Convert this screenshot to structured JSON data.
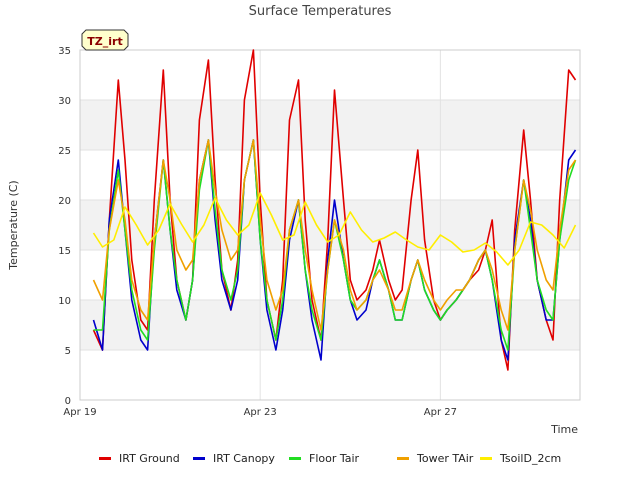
{
  "chart_data": {
    "type": "line",
    "title": "Surface Temperatures",
    "xlabel": "Time",
    "ylabel": "Temperature (C)",
    "badge": "TZ_irt",
    "xlim": [
      0,
      11.1
    ],
    "ylim": [
      0,
      35
    ],
    "yticks": [
      0,
      5,
      10,
      15,
      20,
      25,
      30,
      35
    ],
    "xticks": [
      {
        "value": 0,
        "label": "Apr 19"
      },
      {
        "value": 4,
        "label": "Apr 23"
      },
      {
        "value": 8,
        "label": "Apr 27"
      }
    ],
    "grid": true,
    "banded_background": true,
    "legend_position": "bottom",
    "series": [
      {
        "name": "IRT Ground",
        "color": "#e00000",
        "x": [
          0.3,
          0.5,
          0.65,
          0.85,
          1.0,
          1.15,
          1.35,
          1.5,
          1.65,
          1.85,
          2.0,
          2.15,
          2.35,
          2.5,
          2.65,
          2.85,
          3.0,
          3.15,
          3.35,
          3.5,
          3.65,
          3.85,
          4.0,
          4.15,
          4.35,
          4.5,
          4.65,
          4.85,
          5.0,
          5.15,
          5.35,
          5.5,
          5.65,
          5.85,
          6.0,
          6.15,
          6.35,
          6.5,
          6.65,
          6.85,
          7.0,
          7.15,
          7.35,
          7.5,
          7.65,
          7.85,
          8.0,
          8.15,
          8.35,
          8.5,
          8.65,
          8.85,
          9.0,
          9.15,
          9.35,
          9.5,
          9.65,
          9.85,
          10.0,
          10.15,
          10.35,
          10.5,
          10.65,
          10.85,
          11.0
        ],
        "values": [
          7,
          5,
          18,
          32,
          24,
          14,
          8,
          7,
          20,
          33,
          20,
          12,
          8,
          12,
          28,
          34,
          22,
          13,
          9,
          14,
          30,
          35,
          20,
          10,
          6,
          12,
          28,
          32,
          18,
          10,
          6,
          16,
          31,
          20,
          12,
          10,
          11,
          13,
          16,
          12,
          10,
          11,
          20,
          25,
          16,
          10,
          8,
          9,
          10,
          11,
          12,
          13,
          15,
          18,
          6,
          3,
          17,
          27,
          20,
          12,
          8,
          6,
          20,
          33,
          32
        ]
      },
      {
        "name": "IRT Canopy",
        "color": "#0000cc",
        "x": [
          0.3,
          0.5,
          0.65,
          0.85,
          1.0,
          1.15,
          1.35,
          1.5,
          1.65,
          1.85,
          2.0,
          2.15,
          2.35,
          2.5,
          2.65,
          2.85,
          3.0,
          3.15,
          3.35,
          3.5,
          3.65,
          3.85,
          4.0,
          4.15,
          4.35,
          4.5,
          4.65,
          4.85,
          5.0,
          5.15,
          5.35,
          5.5,
          5.65,
          5.85,
          6.0,
          6.15,
          6.35,
          6.5,
          6.65,
          6.85,
          7.0,
          7.15,
          7.35,
          7.5,
          7.65,
          7.85,
          8.0,
          8.15,
          8.35,
          8.5,
          8.65,
          8.85,
          9.0,
          9.15,
          9.35,
          9.5,
          9.65,
          9.85,
          10.0,
          10.15,
          10.35,
          10.5,
          10.65,
          10.85,
          11.0
        ],
        "values": [
          8,
          5,
          18,
          24,
          17,
          10,
          6,
          5,
          16,
          24,
          17,
          11,
          8,
          12,
          22,
          26,
          18,
          12,
          9,
          12,
          22,
          26,
          16,
          9,
          5,
          9,
          16,
          20,
          13,
          8,
          4,
          14,
          20,
          14,
          10,
          8,
          9,
          12,
          14,
          11,
          8,
          8,
          12,
          14,
          11,
          9,
          8,
          9,
          10,
          11,
          12,
          14,
          15,
          12,
          6,
          4,
          16,
          22,
          18,
          12,
          8,
          8,
          16,
          24,
          25
        ]
      },
      {
        "name": "Floor Tair",
        "color": "#22dd22",
        "x": [
          0.3,
          0.5,
          0.65,
          0.85,
          1.0,
          1.15,
          1.35,
          1.5,
          1.65,
          1.85,
          2.0,
          2.15,
          2.35,
          2.5,
          2.65,
          2.85,
          3.0,
          3.15,
          3.35,
          3.5,
          3.65,
          3.85,
          4.0,
          4.15,
          4.35,
          4.5,
          4.65,
          4.85,
          5.0,
          5.15,
          5.35,
          5.5,
          5.65,
          5.85,
          6.0,
          6.15,
          6.35,
          6.5,
          6.65,
          6.85,
          7.0,
          7.15,
          7.35,
          7.5,
          7.65,
          7.85,
          8.0,
          8.15,
          8.35,
          8.5,
          8.65,
          8.85,
          9.0,
          9.15,
          9.35,
          9.5,
          9.65,
          9.85,
          10.0,
          10.15,
          10.35,
          10.5,
          10.65,
          10.85,
          11.0
        ],
        "values": [
          7,
          7,
          17,
          23,
          17,
          11,
          7,
          6,
          15,
          24,
          17,
          12,
          8,
          12,
          21,
          26,
          19,
          13,
          10,
          13,
          22,
          26,
          16,
          10,
          6,
          10,
          17,
          20,
          13,
          9,
          6,
          13,
          18,
          14,
          10,
          9,
          10,
          12,
          14,
          11,
          8,
          8,
          12,
          14,
          11,
          9,
          8,
          9,
          10,
          11,
          12,
          14,
          15,
          12,
          7,
          5,
          15,
          22,
          17,
          12,
          9,
          8,
          16,
          22,
          24
        ]
      },
      {
        "name": "Tower TAir",
        "color": "#f0a000",
        "x": [
          0.3,
          0.5,
          0.65,
          0.85,
          1.0,
          1.15,
          1.35,
          1.5,
          1.65,
          1.85,
          2.0,
          2.15,
          2.35,
          2.5,
          2.65,
          2.85,
          3.0,
          3.15,
          3.35,
          3.5,
          3.65,
          3.85,
          4.0,
          4.15,
          4.35,
          4.5,
          4.65,
          4.85,
          5.0,
          5.15,
          5.35,
          5.5,
          5.65,
          5.85,
          6.0,
          6.15,
          6.35,
          6.5,
          6.65,
          6.85,
          7.0,
          7.15,
          7.35,
          7.5,
          7.65,
          7.85,
          8.0,
          8.15,
          8.35,
          8.5,
          8.65,
          8.85,
          9.0,
          9.15,
          9.35,
          9.5,
          9.65,
          9.85,
          10.0,
          10.15,
          10.35,
          10.5,
          10.65,
          10.85,
          11.0
        ],
        "values": [
          12,
          10,
          17,
          22,
          18,
          12,
          9,
          8,
          16,
          24,
          20,
          15,
          13,
          14,
          22,
          26,
          21,
          17,
          14,
          15,
          22,
          26,
          18,
          12,
          9,
          11,
          17,
          20,
          15,
          11,
          7,
          13,
          18,
          15,
          11,
          9,
          10,
          12,
          13,
          11,
          9,
          9,
          12,
          14,
          12,
          10,
          9,
          10,
          11,
          11,
          12,
          14,
          15,
          13,
          9,
          7,
          15,
          22,
          19,
          15,
          12,
          11,
          17,
          23,
          24
        ]
      },
      {
        "name": "TsoilD_2cm",
        "color": "#ffee00",
        "x": [
          0.3,
          0.5,
          0.75,
          1.0,
          1.25,
          1.5,
          1.75,
          2.0,
          2.25,
          2.5,
          2.75,
          3.0,
          3.25,
          3.5,
          3.75,
          4.0,
          4.25,
          4.5,
          4.75,
          5.0,
          5.25,
          5.5,
          5.75,
          6.0,
          6.25,
          6.5,
          6.75,
          7.0,
          7.25,
          7.5,
          7.75,
          8.0,
          8.25,
          8.5,
          8.75,
          9.0,
          9.25,
          9.5,
          9.75,
          10.0,
          10.25,
          10.5,
          10.75,
          11.0
        ],
        "values": [
          16.7,
          15.3,
          16,
          19.3,
          17.5,
          15.5,
          17,
          19.6,
          17.6,
          15.8,
          17.5,
          20.2,
          18,
          16.5,
          17.5,
          20.7,
          18.5,
          16,
          16.5,
          19.8,
          17.5,
          15.8,
          16.5,
          18.8,
          17,
          15.8,
          16.2,
          16.8,
          16,
          15.3,
          15,
          16.5,
          15.8,
          14.8,
          15,
          15.7,
          14.8,
          13.5,
          15,
          17.8,
          17.5,
          16.5,
          15.2,
          17.5
        ]
      }
    ]
  },
  "legend": {
    "items": [
      {
        "label": "IRT Ground",
        "color": "#e00000"
      },
      {
        "label": "IRT Canopy",
        "color": "#0000cc"
      },
      {
        "label": "Floor Tair",
        "color": "#22dd22"
      },
      {
        "label": "Tower TAir",
        "color": "#f0a000"
      },
      {
        "label": "TsoilD_2cm",
        "color": "#ffee00"
      }
    ]
  }
}
